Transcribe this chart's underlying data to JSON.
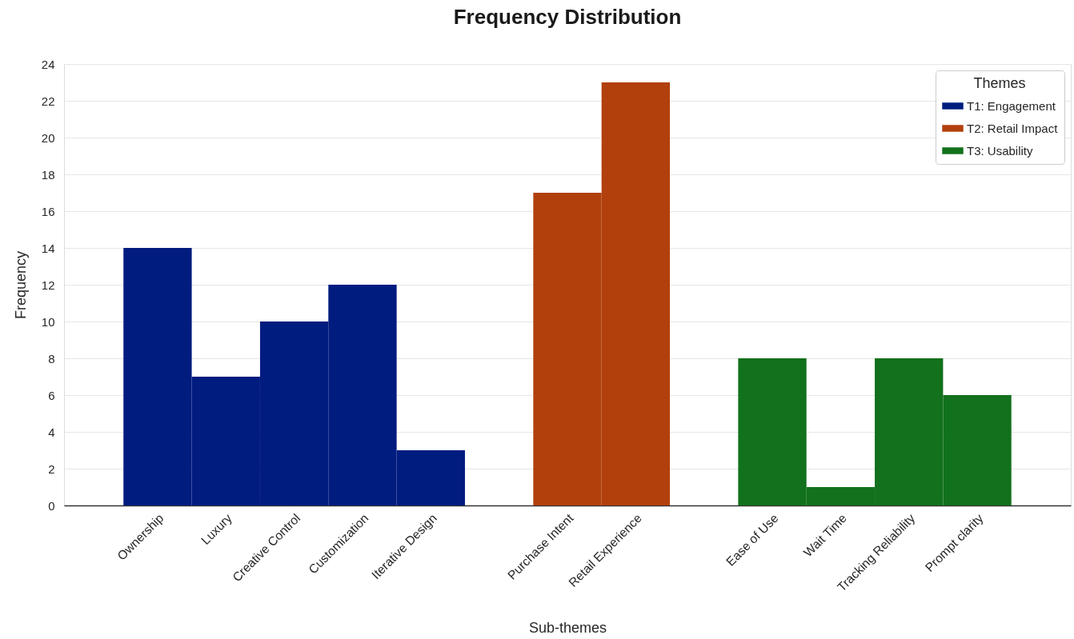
{
  "chart_data": {
    "type": "bar",
    "title": "Frequency Distribution",
    "xlabel": "Sub-themes",
    "ylabel": "Frequency",
    "legend_title": "Themes",
    "categories": [
      "Ownership",
      "Luxury",
      "Creative Control",
      "Customization",
      "Iterative Design",
      null,
      "Purchase Intent",
      "Retail Experience",
      null,
      "Ease of Use",
      "Wait Time",
      "Tracking Reliability",
      "Prompt clarity"
    ],
    "series": [
      {
        "name": "T1: Engagement",
        "color": "#001c7f",
        "values": [
          14,
          7,
          10,
          12,
          3,
          null,
          null,
          null,
          null,
          null,
          null,
          null,
          null
        ]
      },
      {
        "name": "T2: Retail Impact",
        "color": "#b1400d",
        "values": [
          null,
          null,
          null,
          null,
          null,
          null,
          17,
          23,
          null,
          null,
          null,
          null,
          null
        ]
      },
      {
        "name": "T3: Usability",
        "color": "#12711c",
        "values": [
          null,
          null,
          null,
          null,
          null,
          null,
          null,
          null,
          null,
          8,
          1,
          8,
          6
        ]
      }
    ],
    "ylim": [
      0,
      24
    ],
    "yticks": [
      0,
      2,
      4,
      6,
      8,
      10,
      12,
      14,
      16,
      18,
      20,
      22,
      24
    ],
    "grid": "y",
    "legend": "top right"
  }
}
